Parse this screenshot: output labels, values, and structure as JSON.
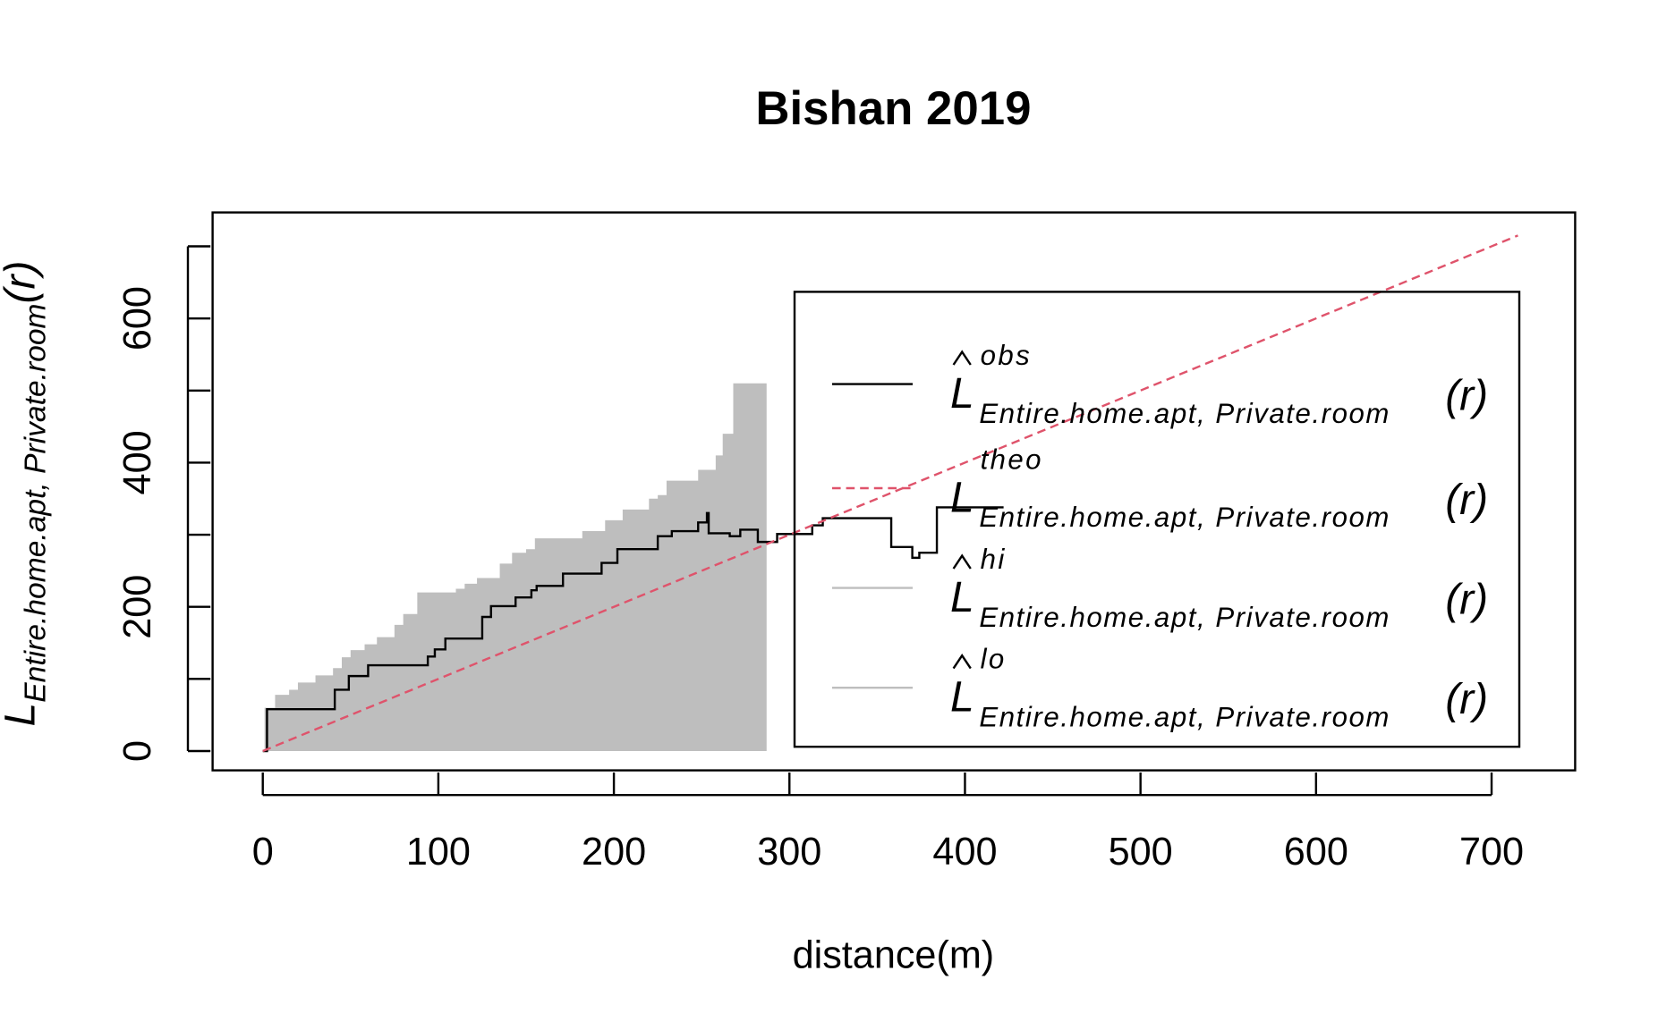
{
  "chart_data": {
    "type": "envelope",
    "title": "Bishan 2019",
    "xlabel": "distance(m)",
    "ylabel": {
      "symbol": "L",
      "subscript": "Entire.home.apt, Private.room",
      "arg": "(r)"
    },
    "legend_symbol": "L",
    "legend_subscript": "Entire.home.apt, Private.room",
    "legend_arg": "(r)",
    "xlim": [
      -28.6,
      747.6
    ],
    "ylim": [
      -26.8,
      747
    ],
    "xticks": [
      0,
      100,
      200,
      300,
      400,
      500,
      600,
      700
    ],
    "yticks": [
      0,
      200,
      400,
      600
    ],
    "yminor_ticks": [
      100,
      300,
      500,
      700
    ],
    "band_color": "#bebebe",
    "band_x": [
      0,
      1,
      7,
      15,
      20,
      30,
      40,
      45,
      50,
      58,
      65,
      75,
      80,
      88,
      110,
      115,
      122,
      135,
      142,
      150,
      155,
      175,
      182,
      195,
      205,
      220,
      225,
      230,
      248,
      258,
      262,
      268,
      287
    ],
    "series": [
      {
        "name": "obs",
        "color": "#000000",
        "style": "solid",
        "step": true,
        "x": [
          0,
          2.4,
          41,
          49,
          60,
          94,
          98,
          104,
          125,
          130,
          144,
          153,
          156,
          171,
          193,
          202,
          225,
          233,
          248,
          253,
          254,
          266,
          272,
          282,
          293,
          313,
          319,
          358,
          370,
          374,
          384,
          422
        ],
        "values": [
          0,
          58,
          85,
          104,
          119,
          131,
          141,
          156,
          186,
          201,
          213,
          223,
          229,
          246,
          261,
          280,
          298,
          305,
          317,
          330,
          302,
          298,
          307,
          290,
          301,
          313,
          323,
          283,
          268,
          275,
          338,
          338
        ]
      },
      {
        "name": "theo",
        "color": "#df536b",
        "style": "dashed",
        "step": false,
        "x": [
          0,
          715
        ],
        "values": [
          0,
          715
        ]
      },
      {
        "name": "hi",
        "color": "#bebebe",
        "style": "solid",
        "step": true,
        "hat": true,
        "x": [
          0,
          1,
          7,
          15,
          20,
          30,
          40,
          45,
          50,
          58,
          65,
          75,
          80,
          88,
          110,
          115,
          122,
          135,
          142,
          150,
          155,
          175,
          182,
          195,
          205,
          220,
          225,
          230,
          248,
          258,
          262,
          268,
          287
        ],
        "values": [
          0,
          60,
          78,
          85,
          95,
          105,
          115,
          130,
          140,
          148,
          158,
          175,
          190,
          220,
          225,
          232,
          240,
          260,
          275,
          280,
          295,
          295,
          305,
          320,
          335,
          350,
          355,
          375,
          390,
          410,
          440,
          510,
          510
        ]
      },
      {
        "name": "lo",
        "color": "#bebebe",
        "style": "solid",
        "step": true,
        "hat": true,
        "x": [
          0,
          287
        ],
        "values": [
          0,
          0
        ]
      }
    ]
  }
}
